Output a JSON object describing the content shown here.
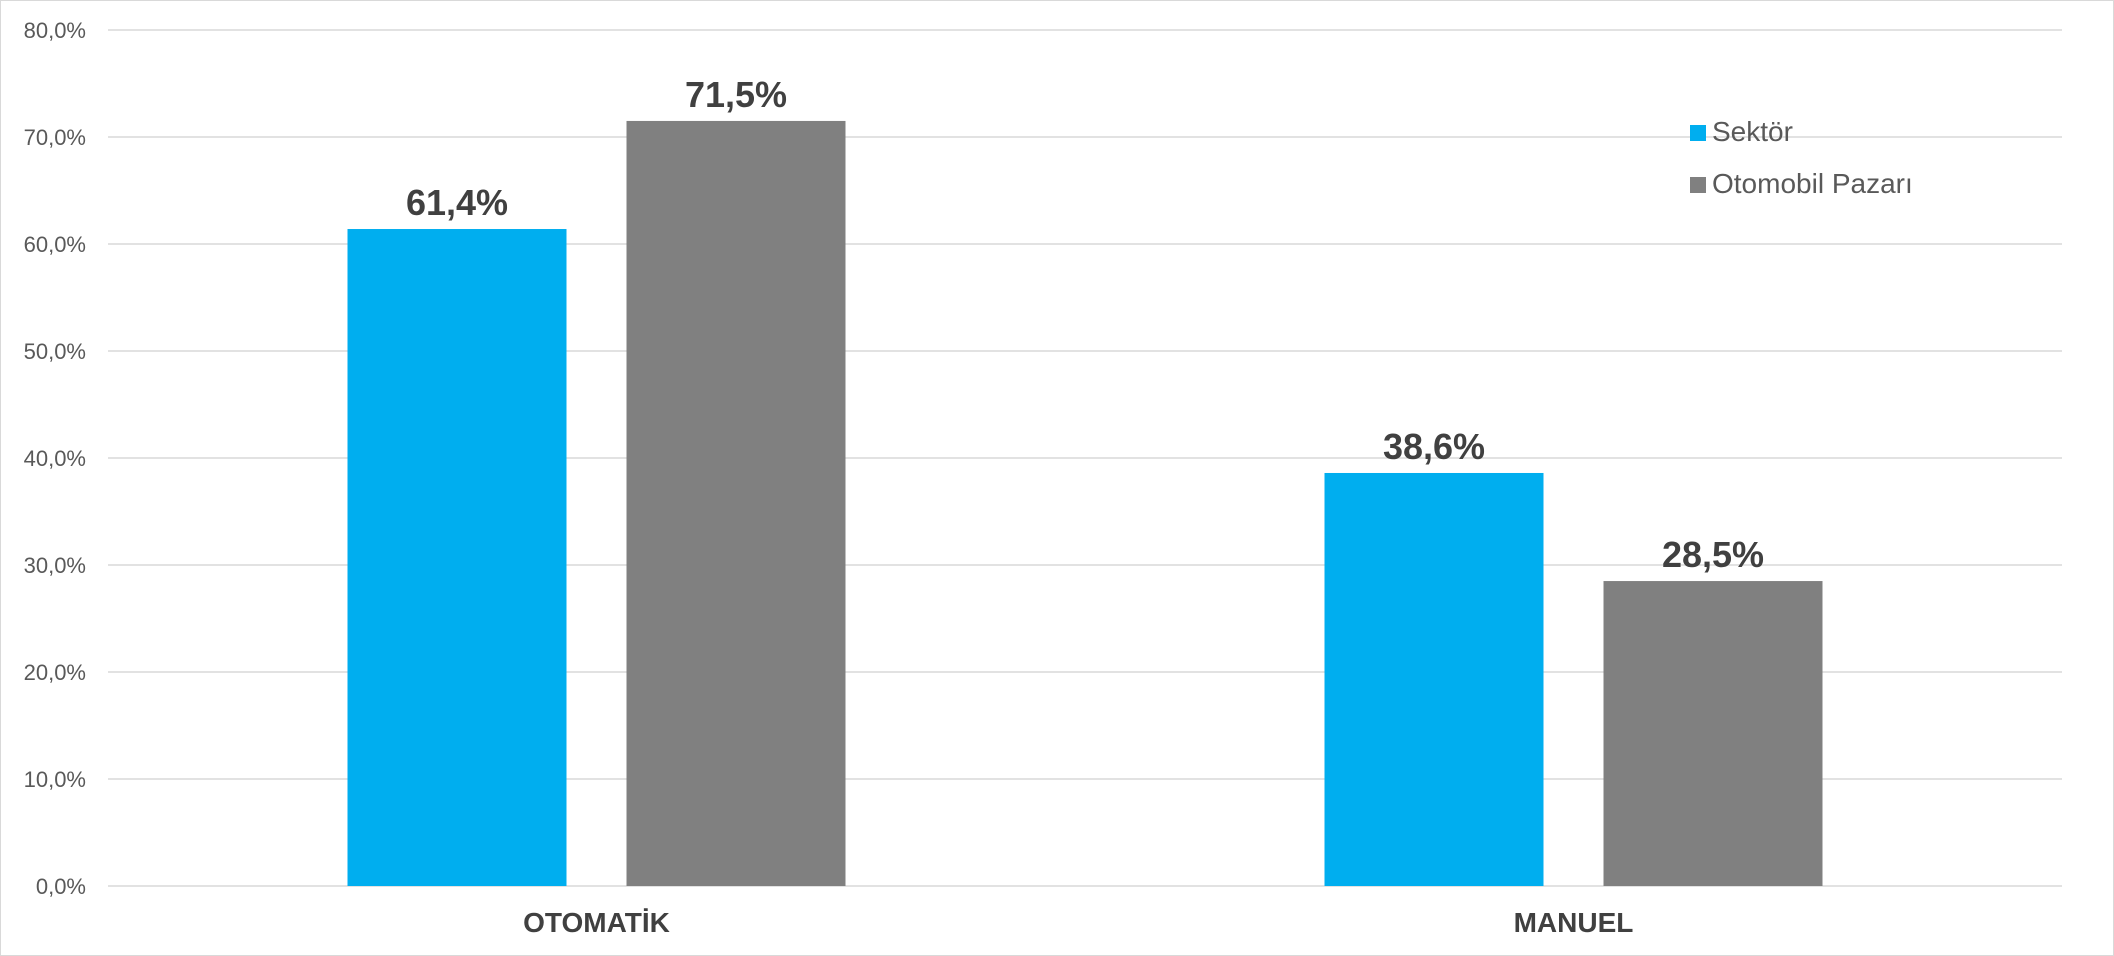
{
  "chart_data": {
    "type": "bar",
    "title": "",
    "xlabel": "",
    "ylabel": "",
    "categories": [
      "OTOMATİK",
      "MANUEL"
    ],
    "series": [
      {
        "name": "Sektör",
        "color": "#00AEEF",
        "values": [
          61.4,
          38.6
        ],
        "labels": [
          "61,4%",
          "38,6%"
        ]
      },
      {
        "name": "Otomobil Pazarı",
        "color": "#808080",
        "values": [
          71.5,
          28.5
        ],
        "labels": [
          "71,5%",
          "28,5%"
        ]
      }
    ],
    "ylim": [
      0,
      80
    ],
    "yticks": [
      0,
      10,
      20,
      30,
      40,
      50,
      60,
      70,
      80
    ],
    "ytick_labels": [
      "0,0%",
      "10,0%",
      "20,0%",
      "30,0%",
      "40,0%",
      "50,0%",
      "60,0%",
      "70,0%",
      "80,0%"
    ],
    "grid": true,
    "legend_position": "top-right"
  }
}
